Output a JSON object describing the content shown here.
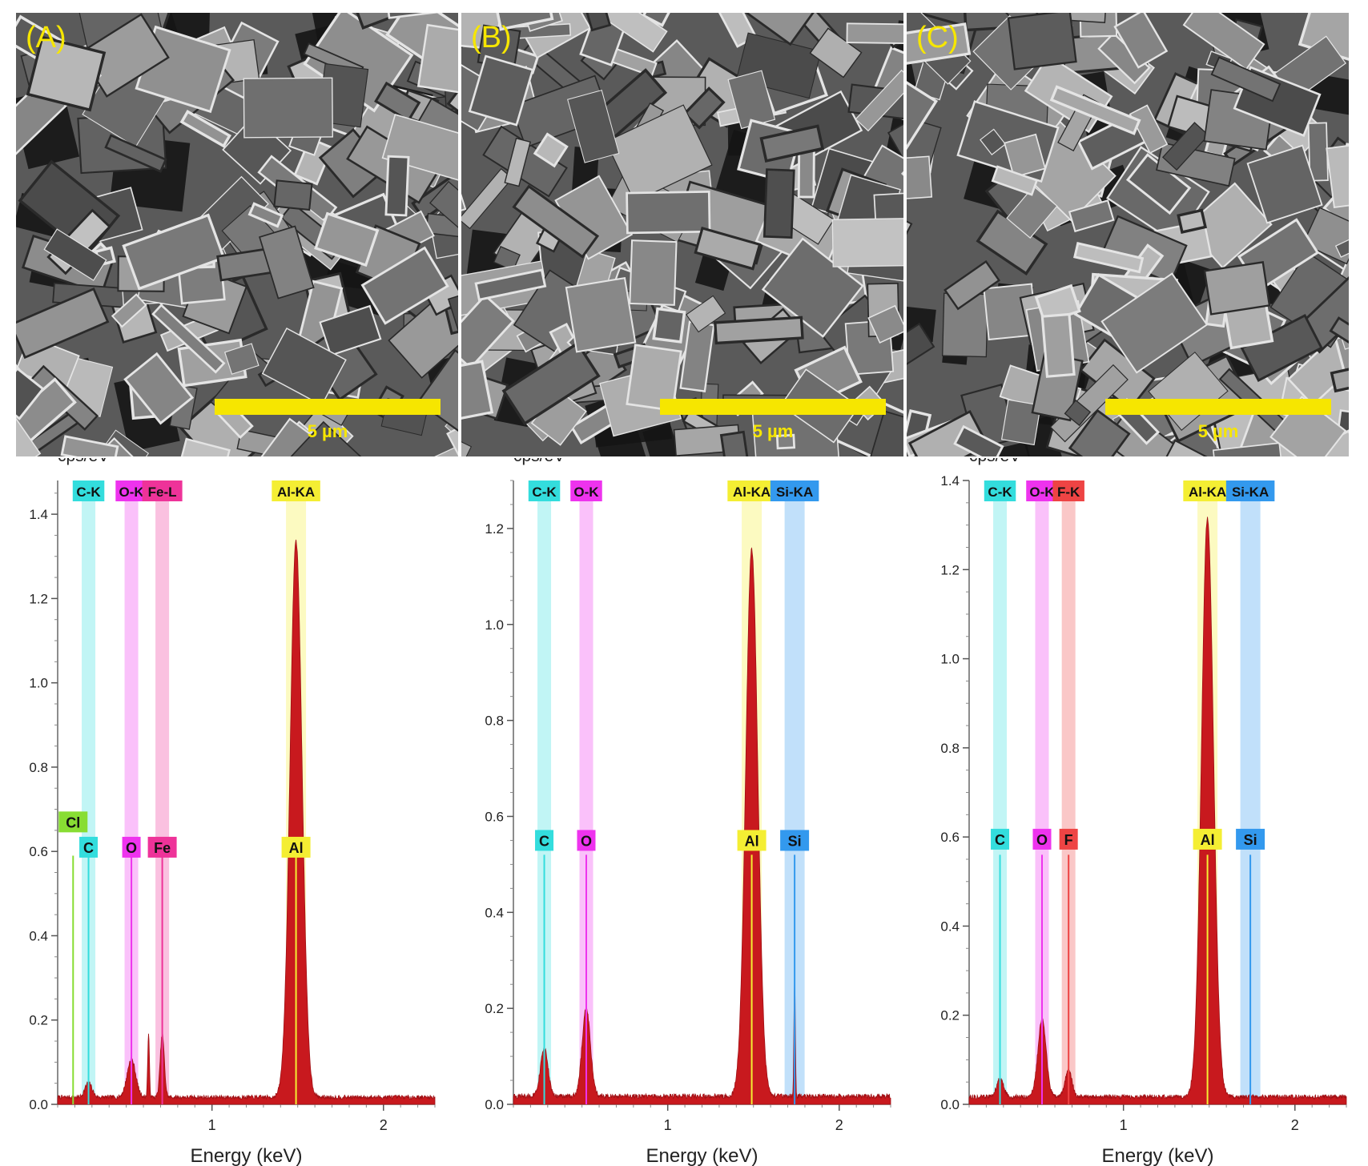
{
  "sem_panels": [
    {
      "label": "(A)",
      "scale": "5 µm"
    },
    {
      "label": "(B)",
      "scale": "5 µm"
    },
    {
      "label": "(C)",
      "scale": "5 µm"
    }
  ],
  "colors": {
    "spectrum": "#c8191e",
    "C": "#33dddd",
    "O": "#ee33ee",
    "Fe": "#ee3399",
    "F": "#ee4444",
    "Al": "#f4ee33",
    "Si": "#3399ee",
    "Cl": "#88dd33",
    "scale_bar": "#f6e600"
  },
  "chart_data": [
    {
      "type": "area",
      "panel": "A",
      "ylabel": "cps/eV",
      "xlabel": "Energy (keV)",
      "xlim": [
        0.1,
        2.3
      ],
      "ylim": [
        0,
        1.48
      ],
      "yticks": [
        "0.0",
        "0.2",
        "0.4",
        "0.6",
        "0.8",
        "1.0",
        "1.2",
        "1.4"
      ],
      "xticks": [
        "1",
        "2"
      ],
      "grid": false,
      "peaks": [
        {
          "element": "C",
          "energy": 0.28,
          "height": 0.035,
          "width": 0.02
        },
        {
          "element": "O",
          "energy": 0.53,
          "height": 0.09,
          "width": 0.025
        },
        {
          "element": "Fe",
          "energy": 0.71,
          "height": 0.15,
          "width": 0.012
        },
        {
          "element": "Fe",
          "energy": 0.63,
          "height": 0.15,
          "width": 0.005
        },
        {
          "element": "Al",
          "energy": 1.49,
          "height": 1.32,
          "width": 0.035
        }
      ],
      "band_labels": [
        {
          "text": "C-K",
          "energy": 0.28,
          "color": "C"
        },
        {
          "text": "O-K",
          "energy": 0.53,
          "color": "O"
        },
        {
          "text": "Fe-L",
          "energy": 0.71,
          "color": "Fe"
        },
        {
          "text": "Al-KA",
          "energy": 1.49,
          "color": "Al"
        }
      ],
      "element_labels": [
        {
          "text": "Cl",
          "energy": 0.19,
          "color": "Cl",
          "label_y": 0.67,
          "line_top": 0.59
        },
        {
          "text": "C",
          "energy": 0.28,
          "color": "C",
          "label_y": 0.61,
          "line_top": 0.59
        },
        {
          "text": "O",
          "energy": 0.53,
          "color": "O",
          "label_y": 0.61,
          "line_top": 0.59
        },
        {
          "text": "Fe",
          "energy": 0.71,
          "color": "Fe",
          "label_y": 0.61,
          "line_top": 0.59
        },
        {
          "text": "Al",
          "energy": 1.49,
          "color": "Al",
          "label_y": 0.61,
          "line_top": 0.59
        }
      ]
    },
    {
      "type": "area",
      "panel": "B",
      "ylabel": "cps/eV",
      "xlabel": "Energy (keV)",
      "xlim": [
        0.1,
        2.3
      ],
      "ylim": [
        0,
        1.3
      ],
      "yticks": [
        "0.0",
        "0.2",
        "0.4",
        "0.6",
        "0.8",
        "1.0",
        "1.2"
      ],
      "xticks": [
        "1",
        "2"
      ],
      "grid": false,
      "peaks": [
        {
          "element": "C",
          "energy": 0.28,
          "height": 0.1,
          "width": 0.022
        },
        {
          "element": "O",
          "energy": 0.525,
          "height": 0.185,
          "width": 0.024
        },
        {
          "element": "Al",
          "energy": 1.49,
          "height": 1.14,
          "width": 0.035
        },
        {
          "element": "Si",
          "energy": 1.74,
          "height": 0.25,
          "width": 0.004
        }
      ],
      "band_labels": [
        {
          "text": "C-K",
          "energy": 0.28,
          "color": "C"
        },
        {
          "text": "O-K",
          "energy": 0.525,
          "color": "O"
        },
        {
          "text": "Al-KA",
          "energy": 1.49,
          "color": "Al"
        },
        {
          "text": "Si-KA",
          "energy": 1.74,
          "color": "Si"
        }
      ],
      "element_labels": [
        {
          "text": "C",
          "energy": 0.28,
          "color": "C",
          "label_y": 0.55,
          "line_top": 0.52
        },
        {
          "text": "O",
          "energy": 0.525,
          "color": "O",
          "label_y": 0.55,
          "line_top": 0.52
        },
        {
          "text": "Al",
          "energy": 1.49,
          "color": "Al",
          "label_y": 0.55,
          "line_top": 0.52
        },
        {
          "text": "Si",
          "energy": 1.74,
          "color": "Si",
          "label_y": 0.55,
          "line_top": 0.52
        }
      ]
    },
    {
      "type": "area",
      "panel": "C",
      "ylabel": "cps/eV",
      "xlabel": "Energy (keV)",
      "xlim": [
        0.1,
        2.3
      ],
      "ylim": [
        0,
        1.4
      ],
      "yticks": [
        "0.0",
        "0.2",
        "0.4",
        "0.6",
        "0.8",
        "1.0",
        "1.2",
        "1.4"
      ],
      "xticks": [
        "1",
        "2"
      ],
      "grid": false,
      "peaks": [
        {
          "element": "C",
          "energy": 0.28,
          "height": 0.04,
          "width": 0.02
        },
        {
          "element": "O",
          "energy": 0.525,
          "height": 0.175,
          "width": 0.024
        },
        {
          "element": "F",
          "energy": 0.68,
          "height": 0.06,
          "width": 0.02
        },
        {
          "element": "Al",
          "energy": 1.49,
          "height": 1.3,
          "width": 0.035
        }
      ],
      "band_labels": [
        {
          "text": "C-K",
          "energy": 0.28,
          "color": "C"
        },
        {
          "text": "O-K",
          "energy": 0.525,
          "color": "O"
        },
        {
          "text": "F-K",
          "energy": 0.68,
          "color": "F"
        },
        {
          "text": "Al-KA",
          "energy": 1.49,
          "color": "Al"
        },
        {
          "text": "Si-KA",
          "energy": 1.74,
          "color": "Si"
        }
      ],
      "element_labels": [
        {
          "text": "C",
          "energy": 0.28,
          "color": "C",
          "label_y": 0.595,
          "line_top": 0.56
        },
        {
          "text": "O",
          "energy": 0.525,
          "color": "O",
          "label_y": 0.595,
          "line_top": 0.56
        },
        {
          "text": "F",
          "energy": 0.68,
          "color": "F",
          "label_y": 0.595,
          "line_top": 0.56
        },
        {
          "text": "Al",
          "energy": 1.49,
          "color": "Al",
          "label_y": 0.595,
          "line_top": 0.56
        },
        {
          "text": "Si",
          "energy": 1.74,
          "color": "Si",
          "label_y": 0.595,
          "line_top": 0.56
        }
      ]
    }
  ]
}
